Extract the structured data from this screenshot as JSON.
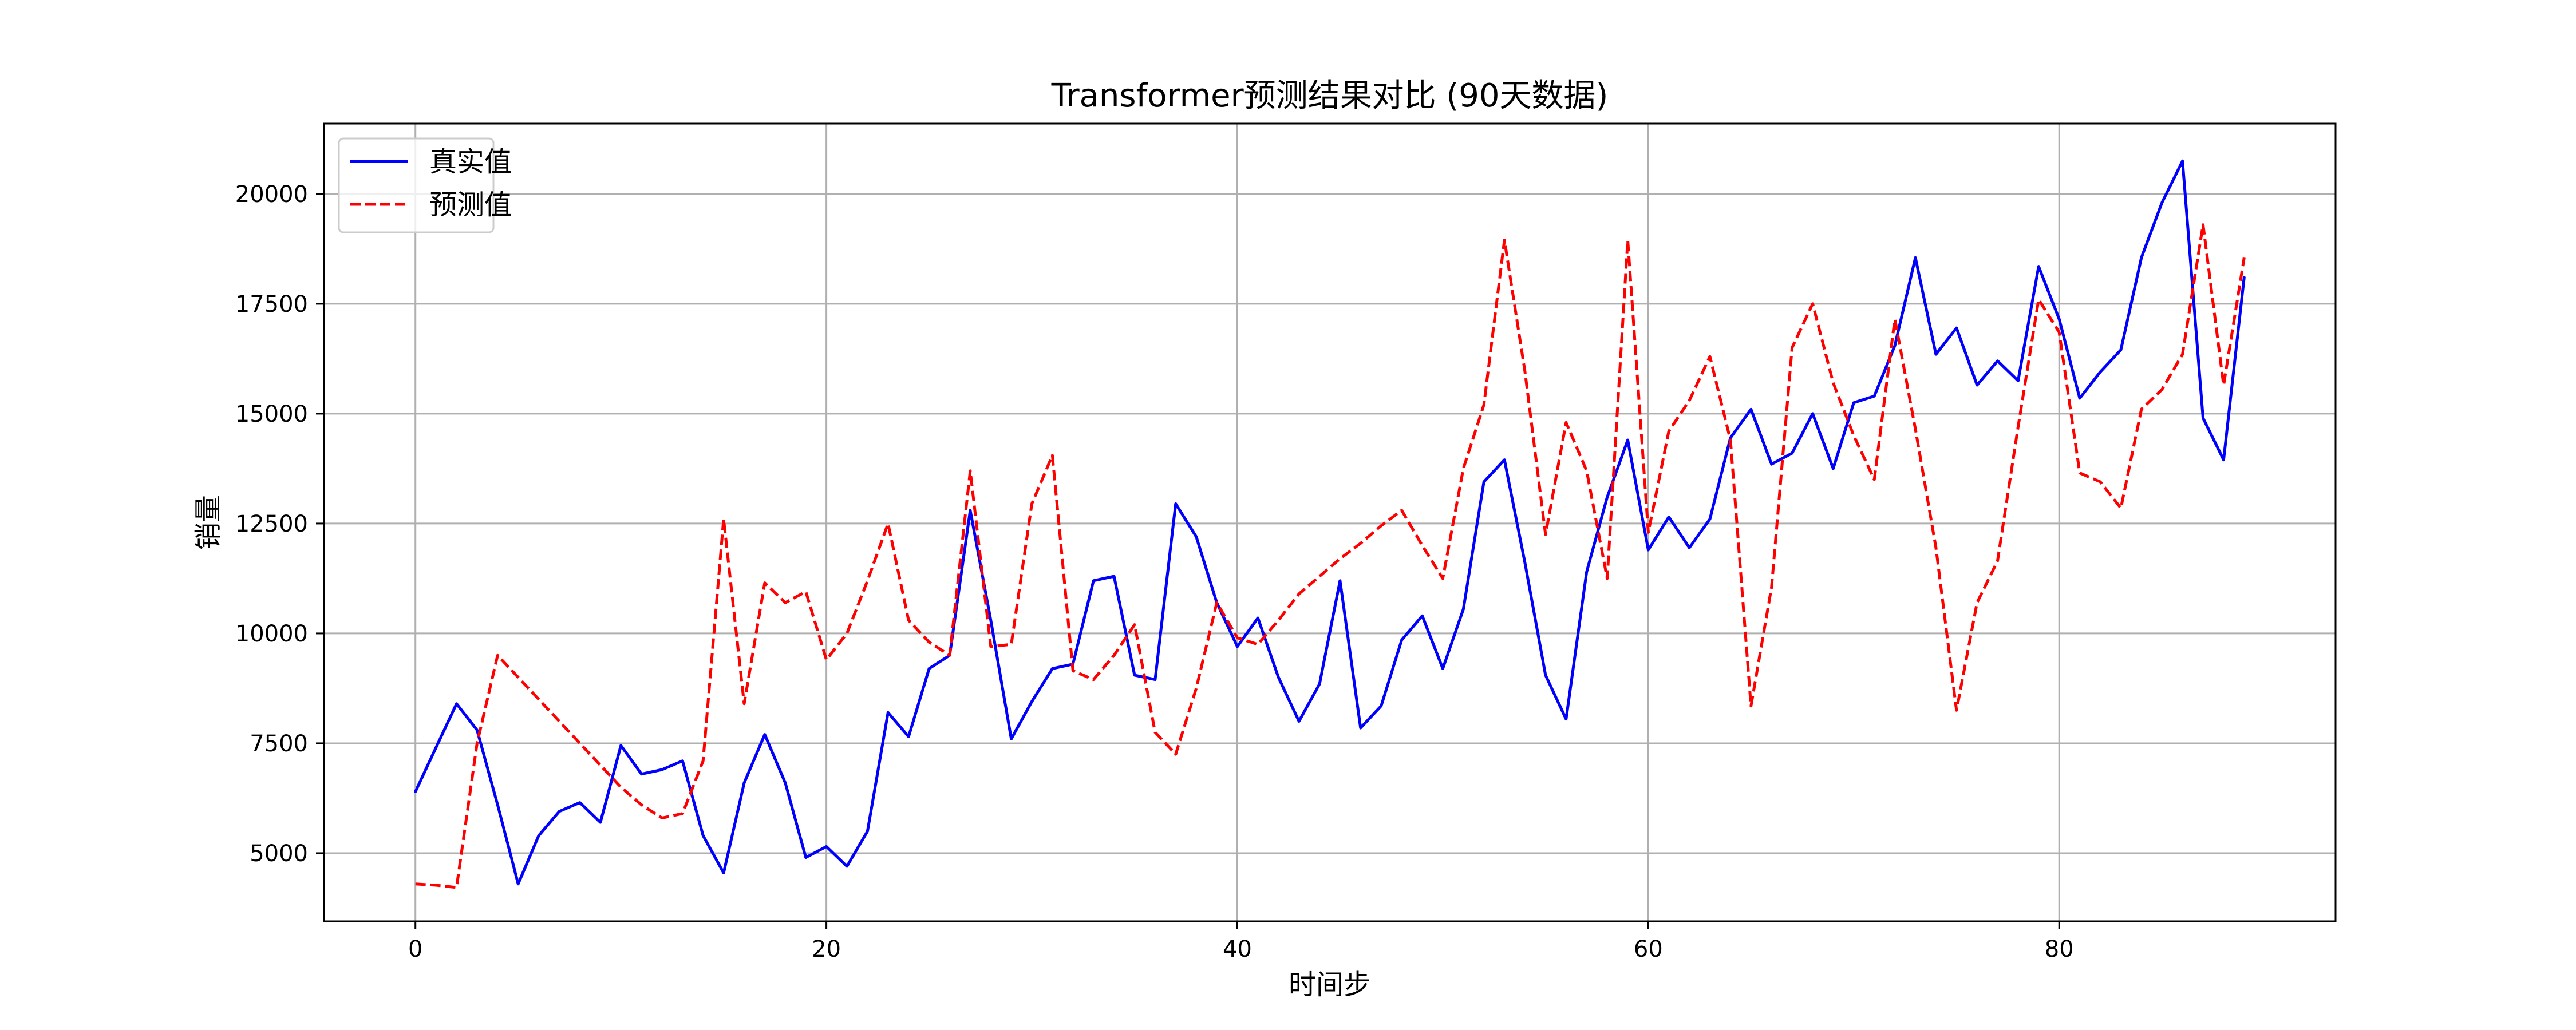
{
  "chart_data": {
    "type": "line",
    "title": "Transformer预测结果对比 (90天数据)",
    "xlabel": "时间步",
    "ylabel": "销量",
    "xlim": [
      -4.45,
      93.45
    ],
    "ylim": [
      3450,
      21600
    ],
    "xticks": [
      0,
      20,
      40,
      60,
      80
    ],
    "yticks": [
      5000,
      7500,
      10000,
      12500,
      15000,
      17500,
      20000
    ],
    "grid": true,
    "legend_position": "top-left",
    "series": [
      {
        "name": "真实值",
        "color": "#0000ff",
        "linestyle": "solid",
        "values": [
          6400,
          7400,
          8400,
          7800,
          6100,
          4300,
          5400,
          5950,
          6150,
          5700,
          7450,
          6800,
          6900,
          7100,
          5400,
          4550,
          6600,
          7700,
          6600,
          4900,
          5150,
          4700,
          5500,
          8200,
          7650,
          9200,
          9500,
          12800,
          10300,
          7600,
          8450,
          9200,
          9300,
          11200,
          11300,
          9050,
          8950,
          12950,
          12200,
          10700,
          9700,
          10350,
          9000,
          8000,
          8850,
          11200,
          7850,
          8350,
          9850,
          10400,
          9200,
          10550,
          13450,
          13950,
          11600,
          9050,
          8050,
          11400,
          13100,
          14400,
          11900,
          12650,
          11950,
          12600,
          14450,
          15100,
          13850,
          14100,
          15000,
          13750,
          15250,
          15400,
          16550,
          18550,
          16350,
          16950,
          15650,
          16200,
          15750,
          18350,
          17150,
          15350,
          15950,
          16450,
          18550,
          19800,
          20750,
          14900,
          13950,
          18100
        ]
      },
      {
        "name": "预测值",
        "color": "#ff0000",
        "linestyle": "dashed",
        "values": [
          4300,
          4270,
          4220,
          7500,
          9500,
          9000,
          8500,
          8000,
          7500,
          7000,
          6500,
          6100,
          5800,
          5900,
          7100,
          12600,
          8400,
          11150,
          10700,
          10950,
          9400,
          10000,
          11200,
          12500,
          10300,
          9800,
          9500,
          13700,
          9700,
          9750,
          12950,
          14050,
          9150,
          8950,
          9500,
          10200,
          7750,
          7250,
          8750,
          10700,
          9900,
          9750,
          10300,
          10900,
          11300,
          11700,
          12050,
          12450,
          12800,
          12000,
          11250,
          13750,
          15200,
          18950,
          15950,
          12250,
          14800,
          13700,
          11250,
          18950,
          12300,
          14600,
          15300,
          16300,
          14400,
          8350,
          11050,
          16500,
          17500,
          15700,
          14500,
          13500,
          17150,
          14650,
          11950,
          8250,
          10700,
          11650,
          14700,
          17600,
          16850,
          13650,
          13450,
          12850,
          15100,
          15550,
          16350,
          19300,
          15650,
          18550
        ]
      }
    ]
  }
}
